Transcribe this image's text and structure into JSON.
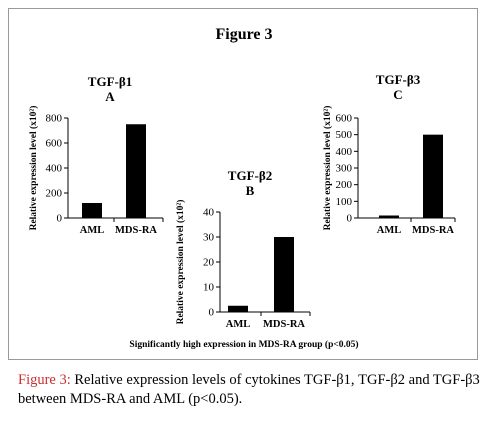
{
  "figure": {
    "title": "Figure 3",
    "footnote": "Significantly high expression in MDS-RA group (p<0.05)",
    "caption_label": "Figure 3:",
    "caption_text": " Relative expression levels of cytokines TGF-β1, TGF-β2 and TGF-β3 between MDS-RA and AML (p<0.05)."
  },
  "chart_data": [
    {
      "type": "bar",
      "title": "TGF-β1",
      "subtitle": "A",
      "ylabel": "Relative expression level (x10²)",
      "categories": [
        "AML",
        "MDS-RA"
      ],
      "values": [
        120,
        750
      ],
      "ylim": [
        0,
        800
      ],
      "yticks": [
        0,
        200,
        400,
        600,
        800
      ],
      "grid": false,
      "bar_color": "#000000"
    },
    {
      "type": "bar",
      "title": "TGF-β2",
      "subtitle": "B",
      "ylabel": "Relative expression level (x10²)",
      "categories": [
        "AML",
        "MDS-RA"
      ],
      "values": [
        2.5,
        30
      ],
      "ylim": [
        0,
        40
      ],
      "yticks": [
        0,
        10,
        20,
        30,
        40
      ],
      "grid": false,
      "bar_color": "#000000"
    },
    {
      "type": "bar",
      "title": "TGF-β3",
      "subtitle": "C",
      "ylabel": "Relative expression level (x10²)",
      "categories": [
        "AML",
        "MDS-RA"
      ],
      "values": [
        15,
        500
      ],
      "ylim": [
        0,
        600
      ],
      "yticks": [
        0,
        100,
        200,
        300,
        400,
        500,
        600
      ],
      "grid": false,
      "bar_color": "#000000"
    }
  ]
}
